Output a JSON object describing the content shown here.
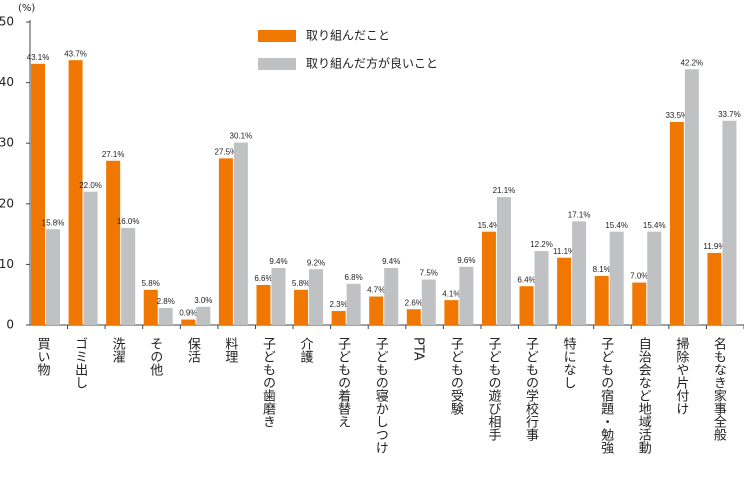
{
  "chart_data": {
    "type": "bar",
    "unit_label": "(%)",
    "categories": [
      "買い物",
      "ゴミ出し",
      "洗濯",
      "その他",
      "保活",
      "料理",
      "子どもの歯磨き",
      "介護",
      "子どもの着替え",
      "子どもの寝かしつけ",
      "PTA",
      "子どもの受験",
      "子どもの遊び相手",
      "子どもの学校行事",
      "特になし",
      "子どもの宿題・勉強",
      "自治会など地域活動",
      "掃除や片付け",
      "名もなき家事全般"
    ],
    "series": [
      {
        "name": "取り組んだこと",
        "color": "#f07800",
        "values": [
          43.1,
          43.7,
          27.1,
          5.8,
          0.9,
          27.5,
          6.6,
          5.8,
          2.3,
          4.7,
          2.6,
          4.1,
          15.4,
          6.4,
          11.1,
          8.1,
          7.0,
          33.5,
          11.9
        ],
        "value_labels": [
          "43.1%",
          "43.7%",
          "27.1%",
          "5.8%",
          "0.9%",
          "27.5%",
          "6.6%",
          "5.8%",
          "2.3%",
          "4.7%",
          "2.6%",
          "4.1%",
          "15.4%",
          "6.4%",
          "11.1%",
          "8.1%",
          "7.0%",
          "33.5%",
          "11.9%"
        ]
      },
      {
        "name": "取り組んだ方が良いこと",
        "color": "#c0c1c3",
        "values": [
          15.8,
          22.0,
          16.0,
          2.8,
          3.0,
          30.1,
          9.4,
          9.2,
          6.8,
          9.4,
          7.5,
          9.6,
          21.1,
          12.2,
          17.1,
          15.4,
          15.4,
          42.2,
          33.7
        ],
        "value_labels": [
          "15.8%",
          "22.0%",
          "16.0%",
          "2.8%",
          "3.0%",
          "30.1%",
          "9.4%",
          "9.2%",
          "6.8%",
          "9.4%",
          "7.5%",
          "9.6%",
          "21.1%",
          "12.2%",
          "17.1%",
          "15.4%",
          "15.4%",
          "42.2%",
          "33.7%"
        ]
      }
    ],
    "ylim": [
      0,
      50
    ],
    "yticks": [
      0,
      10,
      20,
      30,
      40,
      50
    ]
  }
}
